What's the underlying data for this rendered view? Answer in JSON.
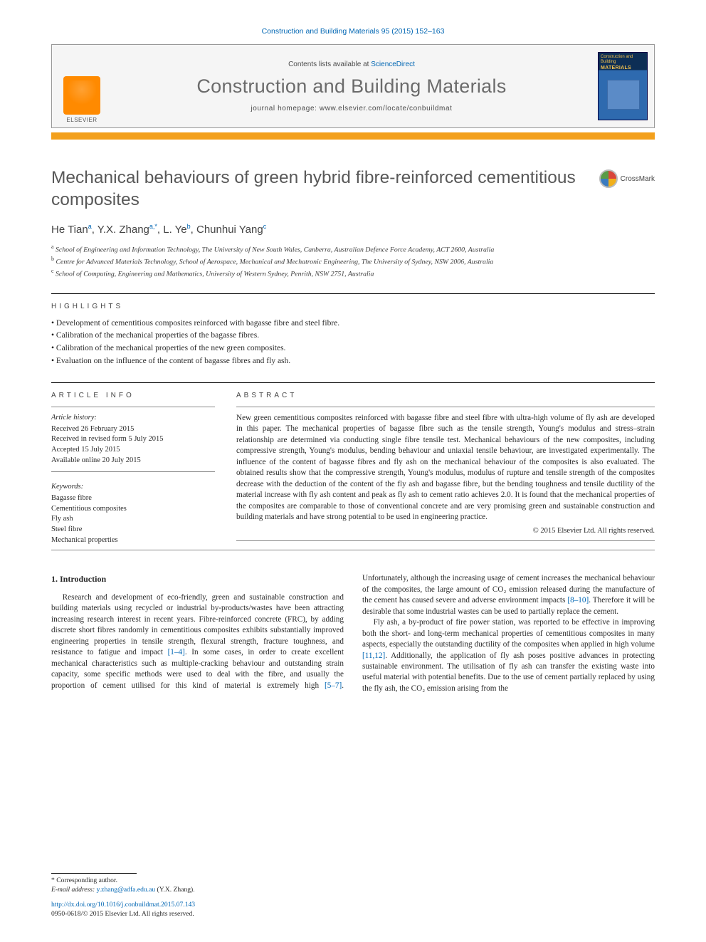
{
  "citation": "Construction and Building Materials 95 (2015) 152–163",
  "masthead": {
    "contents_prefix": "Contents lists available at ",
    "contents_link": "ScienceDirect",
    "journal": "Construction and Building Materials",
    "homepage_prefix": "journal homepage: ",
    "homepage": "www.elsevier.com/locate/conbuildmat",
    "publisher_word": "ELSEVIER",
    "cover_top": "Construction\nand Building",
    "cover_materials": "MATERIALS"
  },
  "crossmark_label": "CrossMark",
  "title": "Mechanical behaviours of green hybrid fibre-reinforced cementitious composites",
  "authors_html": "He Tian<sup>a</sup>, Y.X. Zhang<sup>a,*</sup>, L. Ye<sup>b</sup>, Chunhui Yang<sup>c</sup>",
  "affiliations": [
    "a School of Engineering and Information Technology, The University of New South Wales, Canberra, Australian Defence Force Academy, ACT 2600, Australia",
    "b Centre for Advanced Materials Technology, School of Aerospace, Mechanical and Mechatronic Engineering, The University of Sydney, NSW 2006, Australia",
    "c School of Computing, Engineering and Mathematics, University of Western Sydney, Penrith, NSW 2751, Australia"
  ],
  "highlights_head": "HIGHLIGHTS",
  "highlights": [
    "Development of cementitious composites reinforced with bagasse fibre and steel fibre.",
    "Calibration of the mechanical properties of the bagasse fibres.",
    "Calibration of the mechanical properties of the new green composites.",
    "Evaluation on the influence of the content of bagasse fibres and fly ash."
  ],
  "info_head": "ARTICLE INFO",
  "abs_head": "ABSTRACT",
  "history_head": "Article history:",
  "history": [
    "Received 26 February 2015",
    "Received in revised form 5 July 2015",
    "Accepted 15 July 2015",
    "Available online 20 July 2015"
  ],
  "keywords_head": "Keywords:",
  "keywords": [
    "Bagasse fibre",
    "Cementitious composites",
    "Fly ash",
    "Steel fibre",
    "Mechanical properties"
  ],
  "abstract": "New green cementitious composites reinforced with bagasse fibre and steel fibre with ultra-high volume of fly ash are developed in this paper. The mechanical properties of bagasse fibre such as the tensile strength, Young's modulus and stress–strain relationship are determined via conducting single fibre tensile test. Mechanical behaviours of the new composites, including compressive strength, Young's modulus, bending behaviour and uniaxial tensile behaviour, are investigated experimentally. The influence of the content of bagasse fibres and fly ash on the mechanical behaviour of the composites is also evaluated. The obtained results show that the compressive strength, Young's modulus, modulus of rupture and tensile strength of the composites decrease with the deduction of the content of the fly ash and bagasse fibre, but the bending toughness and tensile ductility of the material increase with fly ash content and peak as fly ash to cement ratio achieves 2.0. It is found that the mechanical properties of the composites are comparable to those of conventional concrete and are very promising green and sustainable construction and building materials and have strong potential to be used in engineering practice.",
  "copyright": "© 2015 Elsevier Ltd. All rights reserved.",
  "intro_head": "1. Introduction",
  "intro_p1_a": "Research and development of eco-friendly, green and sustainable construction and building materials using recycled or industrial by-products/wastes have been attracting increasing research interest in recent years. Fibre-reinforced concrete (FRC), by adding discrete short fibres randomly in cementitious composites exhibits substantially improved engineering properties in tensile strength, flexural strength, fracture toughness, and resistance to fatigue and impact ",
  "intro_cite1": "[1–4]",
  "intro_p1_b": ". In some cases, in order to create excellent mechanical characteristics such as multiple-cracking behaviour and outstanding strain capacity, some specific methods were used to deal with the fibre, and usually the proportion of cement utilised for this kind of material is extremely high ",
  "intro_cite2": "[5–7]",
  "intro_p1_c": ". Unfortunately, although the increasing usage of cement increases the mechanical behaviour of the composites, the large amount of CO₂ emission released during the manufacture of the cement has caused severe and adverse environment impacts ",
  "intro_cite3": "[8–10]",
  "intro_p1_d": ". Therefore it will be desirable that some industrial wastes can be used to partially replace the cement.",
  "intro_p2_a": "Fly ash, a by-product of fire power station, was reported to be effective in improving both the short- and long-term mechanical properties of cementitious composites in many aspects, especially the outstanding ductility of the composites when applied in high volume ",
  "intro_cite4": "[11,12]",
  "intro_p2_b": ". Additionally, the application of fly ash poses positive advances in protecting sustainable environment. The utilisation of fly ash can transfer the existing waste into useful material with potential benefits. Due to the use of cement partially replaced by using the fly ash, the CO₂ emission arising from the",
  "footer": {
    "corr": "* Corresponding author.",
    "email_label": "E-mail address: ",
    "email": "y.zhang@adfa.edu.au",
    "email_suffix": " (Y.X. Zhang).",
    "doi": "http://dx.doi.org/10.1016/j.conbuildmat.2015.07.143",
    "issn_line": "0950-0618/© 2015 Elsevier Ltd. All rights reserved."
  },
  "colors": {
    "link": "#0066b3",
    "orange_bar": "#f3a01c",
    "elsevier_orange": "#ff8a00",
    "cover_dark": "#0d2e55",
    "cover_mid": "#2e6aaf",
    "text": "#2a2a2a",
    "title_grey": "#585858"
  }
}
